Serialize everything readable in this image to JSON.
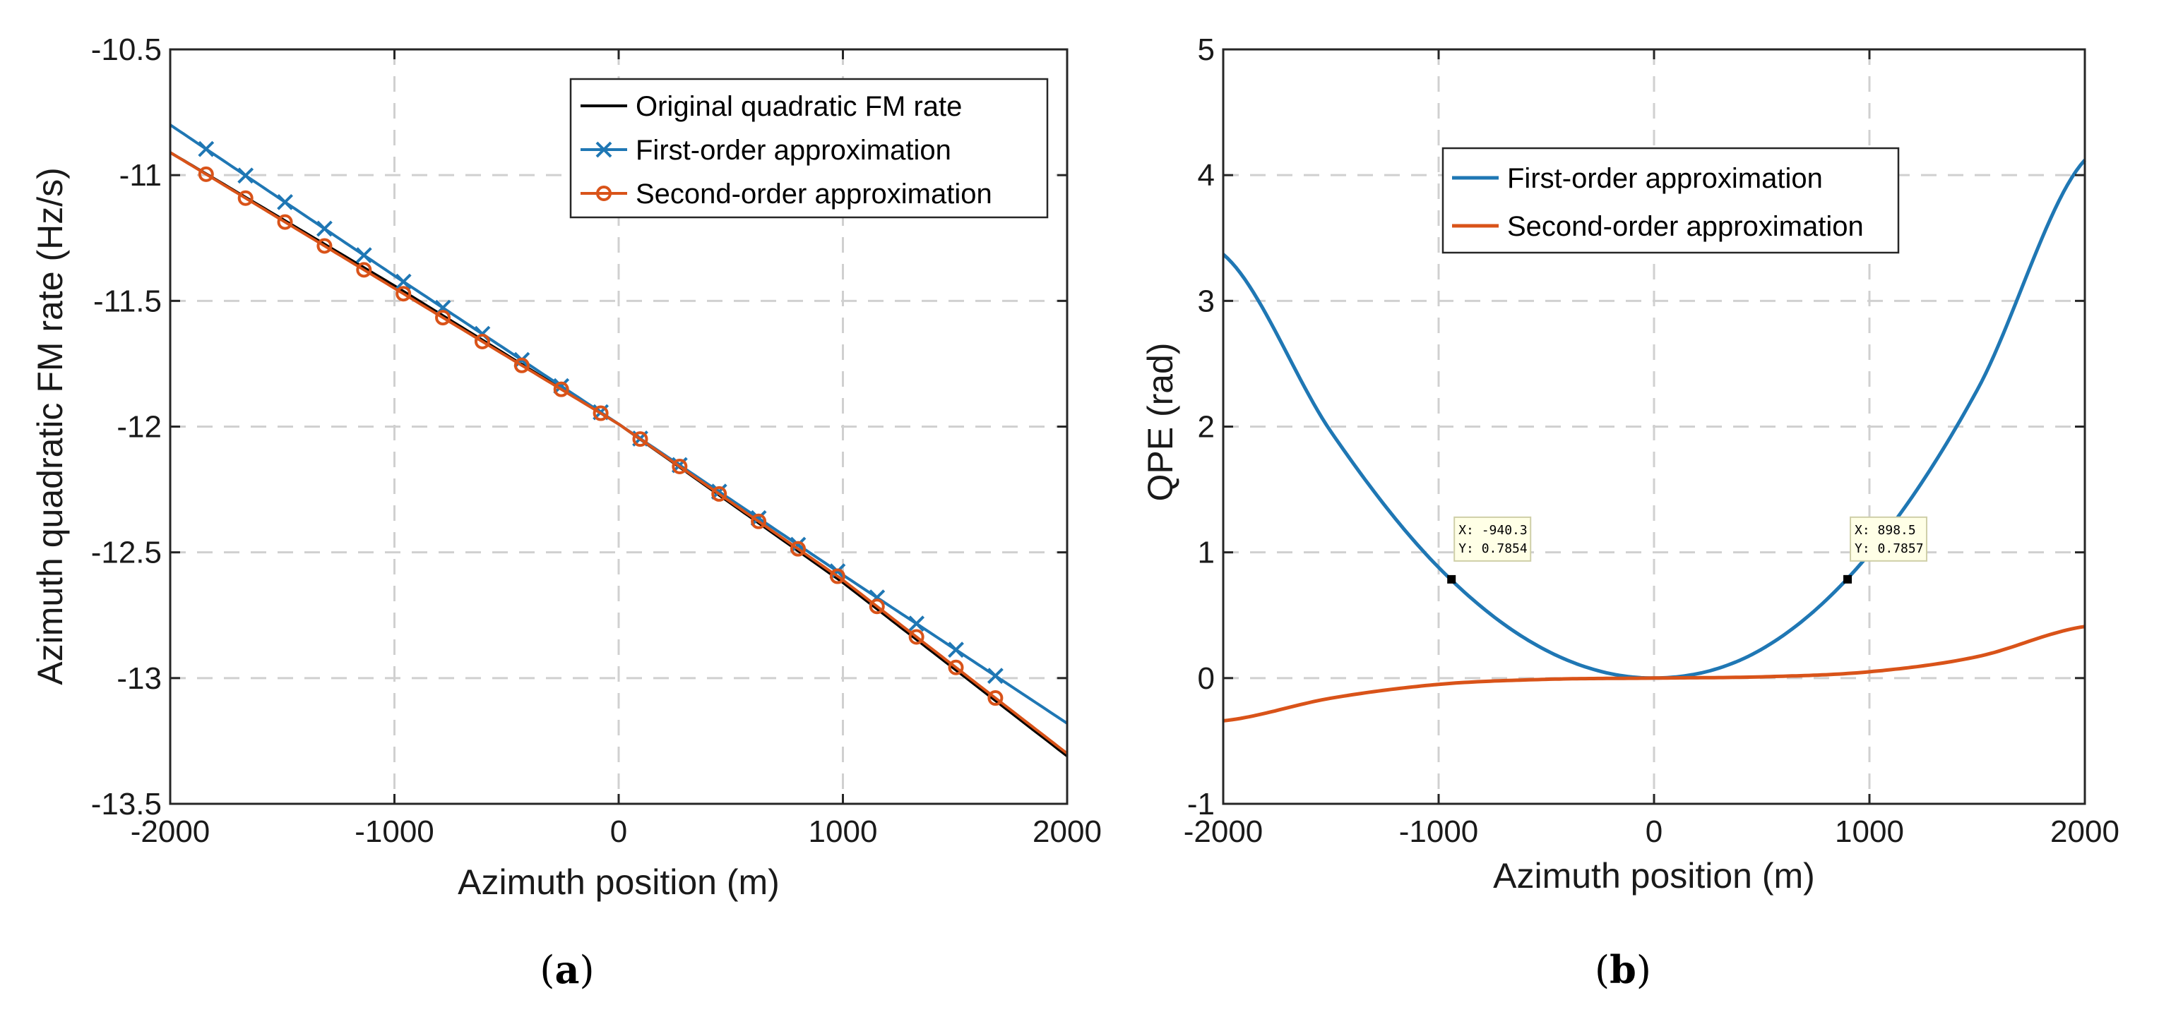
{
  "chart_data": [
    {
      "type": "line",
      "caption": {
        "open": "(",
        "letter": "a",
        "close": ")"
      },
      "xlabel": "Azimuth position (m)",
      "ylabel": "Azimuth quadratic  FM rate (Hz/s)",
      "xlim": [
        -2000,
        2000
      ],
      "ylim": [
        -13.5,
        -10.5
      ],
      "xticks": [
        -2000,
        -1000,
        0,
        1000,
        2000
      ],
      "yticks": [
        -10.5,
        -11,
        -11.5,
        -12,
        -12.5,
        -13,
        -13.5
      ],
      "xtick_labels": [
        "-2000",
        "-1000",
        "0",
        "1000",
        "2000"
      ],
      "ytick_labels": [
        "-10.5",
        "-11",
        "-11.5",
        "-12",
        "-12.5",
        "-13",
        "-13.5"
      ],
      "grid": true,
      "legend_position": "top-right",
      "series": [
        {
          "name": "Original quadratic FM rate",
          "color": "#000000",
          "marker": "none",
          "x": [
            -2000,
            -1000,
            0,
            1000,
            2000
          ],
          "y": [
            -10.91,
            -11.44,
            -11.99,
            -12.62,
            -13.31
          ]
        },
        {
          "name": "First-order approximation",
          "color": "#1f77b4",
          "marker": "x",
          "x": [
            -2000,
            -1000,
            0,
            1000,
            2000
          ],
          "y": [
            -10.8,
            -11.4,
            -11.99,
            -12.59,
            -13.18
          ]
        },
        {
          "name": "Second-order approximation",
          "color": "#d95319",
          "marker": "o",
          "x": [
            -2000,
            -1000,
            0,
            1000,
            2000
          ],
          "y": [
            -10.91,
            -11.45,
            -11.99,
            -12.61,
            -13.3
          ]
        }
      ]
    },
    {
      "type": "line",
      "caption": {
        "open": "(",
        "letter": "b",
        "close": ")"
      },
      "xlabel": "Azimuth position (m)",
      "ylabel": "QPE  (rad)",
      "xlim": [
        -2000,
        2000
      ],
      "ylim": [
        -1,
        5
      ],
      "xticks": [
        -2000,
        -1000,
        0,
        1000,
        2000
      ],
      "yticks": [
        -1,
        0,
        1,
        2,
        3,
        4,
        5
      ],
      "xtick_labels": [
        "-2000",
        "-1000",
        "0",
        "1000",
        "2000"
      ],
      "ytick_labels": [
        "-1",
        "0",
        "1",
        "2",
        "3",
        "4",
        "5"
      ],
      "grid": true,
      "legend_position": "top-center",
      "series": [
        {
          "name": "First-order approximation",
          "color": "#1f77b4",
          "x": [
            -2000,
            -1500,
            -1000,
            -500,
            0,
            500,
            1000,
            1500,
            2000
          ],
          "y": [
            3.37,
            1.96,
            0.88,
            0.22,
            0.0,
            0.23,
            0.99,
            2.29,
            4.12
          ]
        },
        {
          "name": "Second-order approximation",
          "color": "#d95319",
          "x": [
            -2000,
            -1500,
            -1000,
            -500,
            0,
            500,
            1000,
            1500,
            2000
          ],
          "y": [
            -0.34,
            -0.16,
            -0.05,
            -0.01,
            0.0,
            0.01,
            0.05,
            0.17,
            0.41
          ]
        }
      ],
      "datatips": [
        {
          "x": -940.3,
          "y": 0.7854,
          "xtext": "X: -940.3",
          "ytext": "Y: 0.7854"
        },
        {
          "x": 898.5,
          "y": 0.7857,
          "xtext": "X: 898.5",
          "ytext": "Y: 0.7857"
        }
      ]
    }
  ]
}
